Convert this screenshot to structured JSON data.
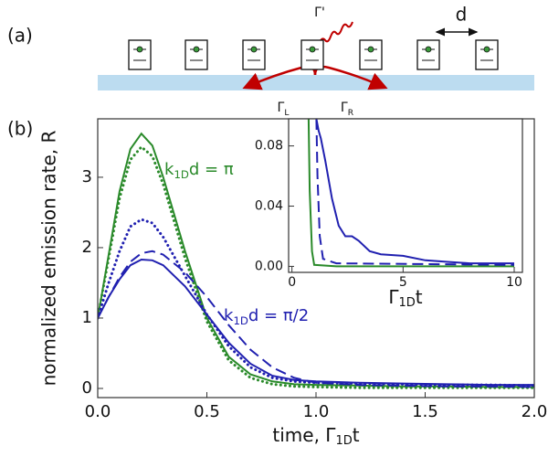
{
  "diagram": {
    "panel_label": "(a)",
    "emission_label": [
      "Γ'"
    ],
    "spacing_label": "d",
    "left_label": [
      "Γ",
      "L"
    ],
    "right_label": [
      "Γ",
      "R"
    ]
  },
  "panel_b_label": "(b)",
  "chart_data": [
    {
      "type": "line",
      "xlabel": [
        "time, Γ",
        "1D",
        "t"
      ],
      "ylabel": "normalized emission rate, R",
      "annotations": [
        {
          "text": [
            "k",
            "1D",
            "d = π"
          ],
          "color": "#2a8a2a"
        },
        {
          "text": [
            "k",
            "1D",
            "d = π/2"
          ],
          "color": "#2020b0"
        }
      ],
      "x": [
        0,
        0.05,
        0.1,
        0.15,
        0.2,
        0.25,
        0.3,
        0.4,
        0.5,
        0.6,
        0.7,
        0.8,
        0.9,
        1.0,
        1.2,
        1.4,
        1.6,
        1.8,
        2.0
      ],
      "series": [
        {
          "color": "#2a8a2a",
          "style": "solid",
          "values": [
            1,
            1.9,
            2.8,
            3.4,
            3.62,
            3.45,
            3.0,
            1.95,
            1.0,
            0.45,
            0.2,
            0.1,
            0.06,
            0.05,
            0.04,
            0.03,
            0.03,
            0.02,
            0.02
          ]
        },
        {
          "color": "#2a8a2a",
          "style": "dotted",
          "values": [
            1,
            1.85,
            2.7,
            3.25,
            3.43,
            3.3,
            2.9,
            1.85,
            0.95,
            0.4,
            0.15,
            0.06,
            0.03,
            0.02,
            0.01,
            0.01,
            0.01,
            0.01,
            0.01
          ]
        },
        {
          "color": "#2020b0",
          "style": "dotted",
          "values": [
            1,
            1.5,
            1.95,
            2.3,
            2.4,
            2.35,
            2.15,
            1.6,
            1.05,
            0.6,
            0.3,
            0.15,
            0.1,
            0.08,
            0.07,
            0.06,
            0.05,
            0.05,
            0.04
          ]
        },
        {
          "color": "#2020b0",
          "style": "solid",
          "values": [
            1,
            1.3,
            1.55,
            1.75,
            1.83,
            1.82,
            1.75,
            1.45,
            1.05,
            0.65,
            0.35,
            0.18,
            0.12,
            0.1,
            0.08,
            0.07,
            0.06,
            0.05,
            0.05
          ]
        },
        {
          "color": "#2020b0",
          "style": "dashed",
          "values": [
            1,
            1.3,
            1.58,
            1.8,
            1.92,
            1.95,
            1.9,
            1.65,
            1.3,
            0.9,
            0.55,
            0.3,
            0.15,
            0.08,
            0.05,
            0.04,
            0.03,
            0.03,
            0.02
          ]
        }
      ],
      "xlim": [
        0,
        2
      ],
      "ylim": [
        -0.13,
        3.83
      ],
      "xticks": [
        {
          "value": 0,
          "label": "0.0"
        },
        {
          "value": 0.5,
          "label": "0.5"
        },
        {
          "value": 1,
          "label": "1.0"
        },
        {
          "value": 1.5,
          "label": "1.5"
        },
        {
          "value": 2,
          "label": "2.0"
        }
      ],
      "yticks": [
        0,
        1,
        2,
        3
      ]
    },
    {
      "type": "line",
      "xlabel": [
        "Γ",
        "1D",
        "t"
      ],
      "series": [
        {
          "color": "#2a8a2a",
          "style": "solid",
          "x": [
            0.75,
            0.8,
            0.9,
            1.0,
            2,
            10
          ],
          "values": [
            0.098,
            0.05,
            0.01,
            0.001,
            0,
            0
          ]
        },
        {
          "color": "#2020b0",
          "style": "dashed",
          "x": [
            1.1,
            1.15,
            1.25,
            1.4,
            2,
            10
          ],
          "values": [
            0.098,
            0.06,
            0.02,
            0.005,
            0.002,
            0.001
          ]
        },
        {
          "color": "#2020b0",
          "style": "solid",
          "x": [
            1.1,
            1.2,
            1.3,
            1.5,
            1.8,
            2.1,
            2.4,
            2.7,
            3.0,
            3.5,
            4,
            5,
            6,
            7,
            8,
            9,
            10
          ],
          "values": [
            0.098,
            0.09,
            0.085,
            0.07,
            0.045,
            0.027,
            0.02,
            0.02,
            0.017,
            0.01,
            0.008,
            0.007,
            0.004,
            0.003,
            0.002,
            0.002,
            0.002
          ]
        }
      ],
      "xlim": [
        -0.15,
        10.37
      ],
      "ylim": [
        -0.004,
        0.098
      ],
      "xticks": [
        0,
        5,
        10
      ],
      "yticks": [
        {
          "value": 0,
          "label": "0.00"
        },
        {
          "value": 0.04,
          "label": "0.04"
        },
        {
          "value": 0.08,
          "label": "0.08"
        }
      ]
    }
  ]
}
